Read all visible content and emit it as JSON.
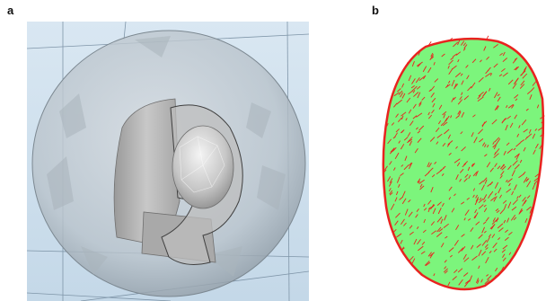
{
  "figure": {
    "panels": [
      {
        "label": "a",
        "description_icon": "cutaway-sphere-3d-render"
      },
      {
        "label": "b",
        "description_icon": "particle-vector-blob"
      }
    ]
  },
  "colors": {
    "background_blue": "#cfe0ee",
    "shell_gray": "#c9d1d8",
    "core_gray": "#b8b8b8",
    "blob_green": "#7cf57c",
    "vector_red": "#e8231f"
  }
}
